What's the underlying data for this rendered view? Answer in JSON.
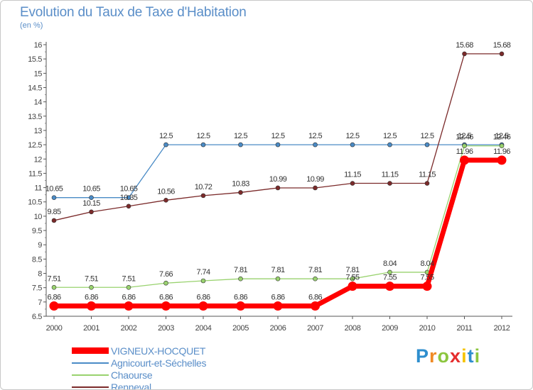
{
  "chart_data": {
    "type": "line",
    "title": "Evolution du Taux de Taxe d'Habitation",
    "subtitle": "(en %)",
    "x": [
      "2000",
      "2001",
      "2002",
      "2003",
      "2004",
      "2005",
      "2006",
      "2007",
      "2008",
      "2009",
      "2010",
      "2011",
      "2012"
    ],
    "ylim": [
      6.5,
      16
    ],
    "yticks": [
      "6.5",
      "7",
      "7.5",
      "8",
      "8.5",
      "9",
      "9.5",
      "10",
      "10.5",
      "11",
      "11.5",
      "12",
      "12.5",
      "13",
      "13.5",
      "14",
      "14.5",
      "15",
      "15.5",
      "16"
    ],
    "grid": false,
    "legend_position": "bottom-left",
    "series": [
      {
        "name": "VIGNEUX-HOCQUET",
        "color": "#ff0000",
        "values": [
          6.86,
          6.86,
          6.86,
          6.86,
          6.86,
          6.86,
          6.86,
          6.86,
          7.55,
          7.55,
          7.55,
          11.96,
          11.96
        ],
        "labels": [
          "6.86",
          "6.86",
          "6.86",
          "6.86",
          "6.86",
          "6.86",
          "6.86",
          "6.86",
          "7.55",
          "7.55",
          "7.55",
          "11.96",
          "11.96"
        ]
      },
      {
        "name": "Agnicourt-et-Séchelles",
        "color": "#4a8bc6",
        "values": [
          10.65,
          10.65,
          10.65,
          12.5,
          12.5,
          12.5,
          12.5,
          12.5,
          12.5,
          12.5,
          12.5,
          12.5,
          12.5
        ],
        "labels": [
          "10.65",
          "10.65",
          "10.65",
          "12.5",
          "12.5",
          "12.5",
          "12.5",
          "12.5",
          "12.5",
          "12.5",
          "12.5",
          "12.5",
          "12.5"
        ]
      },
      {
        "name": "Chaourse",
        "color": "#99d26e",
        "values": [
          7.51,
          7.51,
          7.51,
          7.66,
          7.74,
          7.81,
          7.81,
          7.81,
          7.81,
          8.04,
          8.04,
          12.46,
          12.46
        ],
        "labels": [
          "7.51",
          "7.51",
          "7.51",
          "7.66",
          "7.74",
          "7.81",
          "7.81",
          "7.81",
          "7.81",
          "8.04",
          "8.04",
          "12.46",
          "12.46"
        ]
      },
      {
        "name": "Renneval",
        "color": "#7b2a2a",
        "values": [
          9.85,
          10.15,
          10.35,
          10.56,
          10.72,
          10.83,
          10.99,
          10.99,
          11.15,
          11.15,
          11.15,
          15.68,
          15.68
        ],
        "labels": [
          "9.85",
          "10.15",
          "10.35",
          "10.56",
          "10.72",
          "10.83",
          "10.99",
          "10.99",
          "11.15",
          "11.15",
          "11.15",
          "15.68",
          "15.68"
        ]
      }
    ]
  },
  "logo": {
    "text": "Proxiti"
  }
}
